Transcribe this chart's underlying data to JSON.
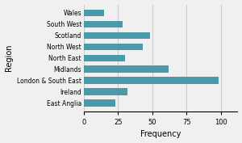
{
  "categories": [
    "Wales",
    "South West",
    "Scotland",
    "North West",
    "North East",
    "Midlands",
    "London & South East",
    "Ireland",
    "East Anglia"
  ],
  "values": [
    15,
    28,
    48,
    43,
    30,
    62,
    98,
    32,
    23
  ],
  "bar_color": "#4a9aaa",
  "xlabel": "Frequency",
  "ylabel": "Region",
  "xlim": [
    0,
    112
  ],
  "xticks": [
    0,
    25,
    50,
    75,
    100
  ],
  "grid_color": "#cccccc",
  "background_color": "#f0f0f0"
}
